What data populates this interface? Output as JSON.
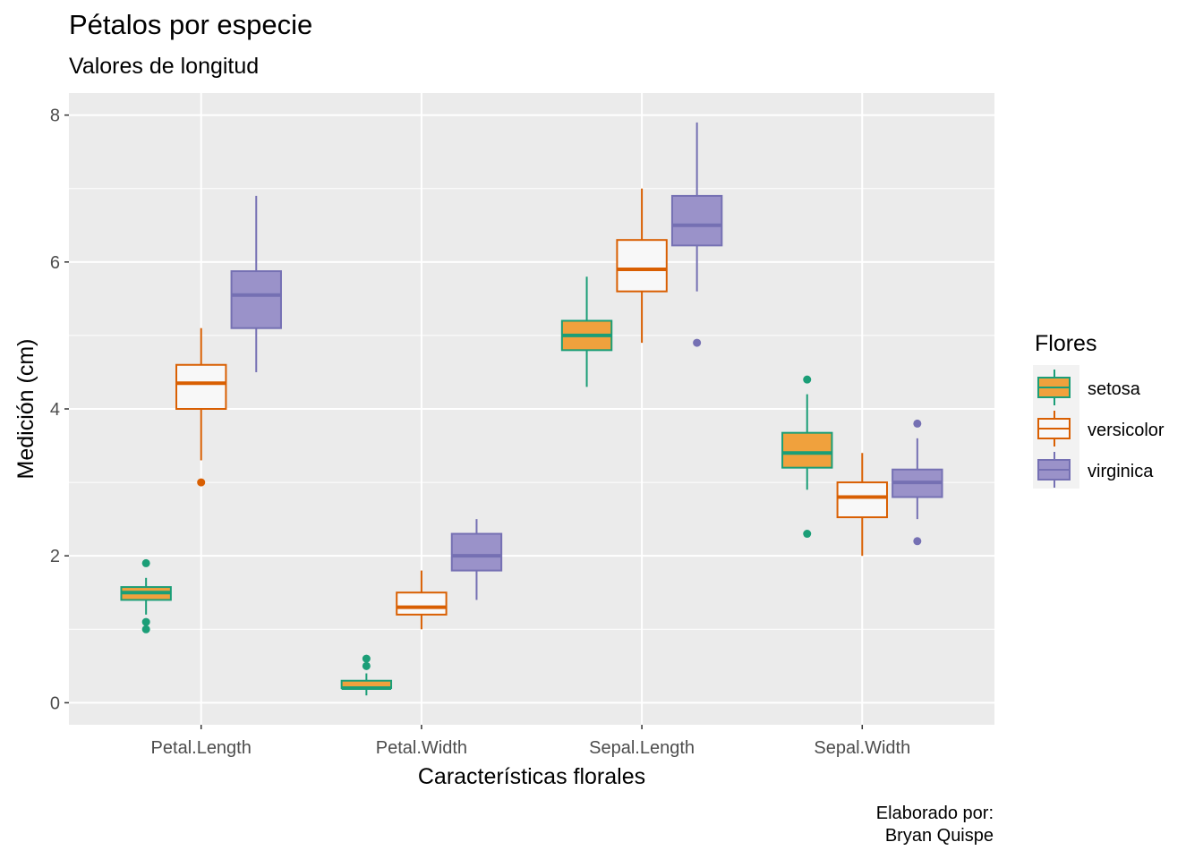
{
  "chart_data": {
    "type": "boxplot",
    "title": "Pétalos por especie",
    "subtitle": "Valores de longitud",
    "caption": [
      "Elaborado por:",
      "Bryan Quispe"
    ],
    "xlabel": "Características florales",
    "ylabel": "Medición (cm)",
    "categories": [
      "Petal.Length",
      "Petal.Width",
      "Sepal.Length",
      "Sepal.Width"
    ],
    "ylim": [
      -0.3,
      8.3
    ],
    "yticks": [
      0,
      2,
      4,
      6,
      8
    ],
    "grid": true,
    "legend": {
      "title": "Flores",
      "position": "right"
    },
    "series": [
      {
        "name": "setosa",
        "stroke": "#1b9e77",
        "fill": "#f0a13d",
        "boxes": [
          {
            "min": 1.0,
            "q1": 1.4,
            "median": 1.5,
            "q3": 1.575,
            "max": 1.9,
            "lo": 1.2,
            "hi": 1.7,
            "outliers": [
              1.0,
              1.1,
              1.9
            ]
          },
          {
            "min": 0.1,
            "q1": 0.2,
            "median": 0.2,
            "q3": 0.3,
            "max": 0.6,
            "lo": 0.1,
            "hi": 0.4,
            "outliers": [
              0.5,
              0.6
            ]
          },
          {
            "min": 4.3,
            "q1": 4.8,
            "median": 5.0,
            "q3": 5.2,
            "max": 5.8,
            "lo": 4.3,
            "hi": 5.8,
            "outliers": []
          },
          {
            "min": 2.3,
            "q1": 3.2,
            "median": 3.4,
            "q3": 3.675,
            "max": 4.4,
            "lo": 2.9,
            "hi": 4.2,
            "outliers": [
              2.3,
              4.4
            ]
          }
        ]
      },
      {
        "name": "versicolor",
        "stroke": "#d95f02",
        "fill": "#f8f8f8",
        "boxes": [
          {
            "min": 3.0,
            "q1": 4.0,
            "median": 4.35,
            "q3": 4.6,
            "max": 5.1,
            "lo": 3.3,
            "hi": 5.1,
            "outliers": [
              3.0
            ]
          },
          {
            "min": 1.0,
            "q1": 1.2,
            "median": 1.3,
            "q3": 1.5,
            "max": 1.8,
            "lo": 1.0,
            "hi": 1.8,
            "outliers": []
          },
          {
            "min": 4.9,
            "q1": 5.6,
            "median": 5.9,
            "q3": 6.3,
            "max": 7.0,
            "lo": 4.9,
            "hi": 7.0,
            "outliers": []
          },
          {
            "min": 2.0,
            "q1": 2.525,
            "median": 2.8,
            "q3": 3.0,
            "max": 3.4,
            "lo": 2.0,
            "hi": 3.4,
            "outliers": []
          }
        ]
      },
      {
        "name": "virginica",
        "stroke": "#7570b3",
        "fill": "#9a92c9",
        "boxes": [
          {
            "min": 4.5,
            "q1": 5.1,
            "median": 5.55,
            "q3": 5.875,
            "max": 6.9,
            "lo": 4.5,
            "hi": 6.9,
            "outliers": []
          },
          {
            "min": 1.4,
            "q1": 1.8,
            "median": 2.0,
            "q3": 2.3,
            "max": 2.5,
            "lo": 1.4,
            "hi": 2.5,
            "outliers": []
          },
          {
            "min": 4.9,
            "q1": 6.225,
            "median": 6.5,
            "q3": 6.9,
            "max": 7.9,
            "lo": 5.6,
            "hi": 7.9,
            "outliers": [
              4.9
            ]
          },
          {
            "min": 2.2,
            "q1": 2.8,
            "median": 3.0,
            "q3": 3.175,
            "max": 3.8,
            "lo": 2.5,
            "hi": 3.6,
            "outliers": [
              2.2,
              3.8
            ]
          }
        ]
      }
    ]
  }
}
